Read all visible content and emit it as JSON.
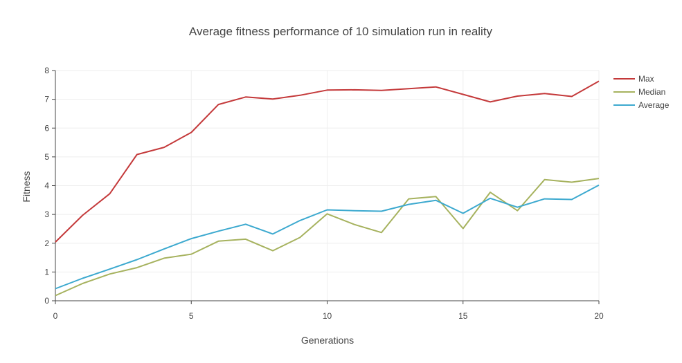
{
  "chart_data": {
    "type": "line",
    "title": "Average fitness performance of 10 simulation run in reality",
    "xlabel": "Generations",
    "ylabel": "Fitness",
    "x": [
      0,
      1,
      2,
      3,
      4,
      5,
      6,
      7,
      8,
      9,
      10,
      11,
      12,
      13,
      14,
      15,
      16,
      17,
      18,
      19,
      20
    ],
    "xlim": [
      0,
      20
    ],
    "ylim": [
      0,
      8
    ],
    "xticks": [
      0,
      5,
      10,
      15,
      20
    ],
    "yticks": [
      0,
      1,
      2,
      3,
      4,
      5,
      6,
      7,
      8
    ],
    "grid": true,
    "legend_position": "top-right",
    "series": [
      {
        "name": "Max",
        "color": "#c4393a",
        "values": [
          2.04,
          2.97,
          3.72,
          5.08,
          5.33,
          5.85,
          6.82,
          7.08,
          7.01,
          7.14,
          7.32,
          7.33,
          7.31,
          7.37,
          7.43,
          7.17,
          6.91,
          7.11,
          7.2,
          7.1,
          7.63
        ]
      },
      {
        "name": "Median",
        "color": "#a6b25e",
        "values": [
          0.18,
          0.6,
          0.93,
          1.15,
          1.48,
          1.62,
          2.07,
          2.14,
          1.74,
          2.2,
          3.02,
          2.65,
          2.37,
          3.54,
          3.62,
          2.51,
          3.77,
          3.13,
          4.21,
          4.12,
          4.25
        ]
      },
      {
        "name": "Average",
        "color": "#3ca9cf",
        "values": [
          0.42,
          0.78,
          1.1,
          1.43,
          1.8,
          2.16,
          2.42,
          2.66,
          2.32,
          2.79,
          3.16,
          3.13,
          3.11,
          3.35,
          3.49,
          3.04,
          3.56,
          3.25,
          3.54,
          3.52,
          4.02
        ]
      }
    ]
  }
}
